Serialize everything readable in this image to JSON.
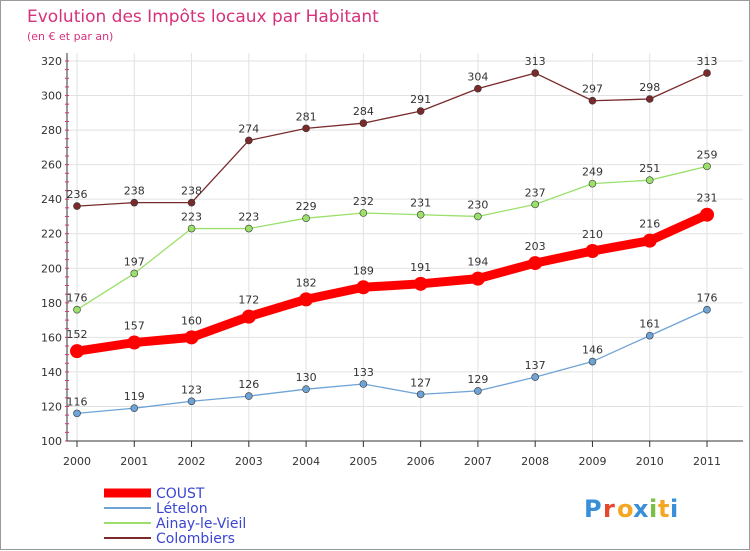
{
  "chart_data": {
    "type": "line",
    "title": "Evolution des Impôts locaux par Habitant",
    "subtitle": "(en € et par an)",
    "x": [
      "2000",
      "2001",
      "2002",
      "2003",
      "2004",
      "2005",
      "2006",
      "2007",
      "2008",
      "2009",
      "2010",
      "2011"
    ],
    "ylim": [
      100,
      320
    ],
    "yticks": [
      100,
      120,
      140,
      160,
      180,
      200,
      220,
      240,
      260,
      280,
      300,
      320
    ],
    "grid": true,
    "legend_position": "bottom-left",
    "series": [
      {
        "name": "COUST",
        "color": "#ff0000",
        "values": [
          152,
          157,
          160,
          172,
          182,
          189,
          191,
          194,
          203,
          210,
          216,
          231
        ]
      },
      {
        "name": "Lételon",
        "color": "#6fa3d6",
        "values": [
          116,
          119,
          123,
          126,
          130,
          133,
          127,
          129,
          137,
          146,
          161,
          176
        ]
      },
      {
        "name": "Ainay-le-Vieil",
        "color": "#9be06a",
        "values": [
          176,
          197,
          223,
          223,
          229,
          232,
          231,
          230,
          237,
          249,
          251,
          259
        ]
      },
      {
        "name": "Colombiers",
        "color": "#7a2a2a",
        "values": [
          236,
          238,
          238,
          274,
          281,
          284,
          291,
          304,
          313,
          297,
          298,
          313
        ]
      }
    ]
  },
  "logo": {
    "text": "Proxiti",
    "colors": [
      "#3a8fd9",
      "#e8462c",
      "#f5a623",
      "#3a8fd9",
      "#7ac143",
      "#f5a623",
      "#3a8fd9"
    ]
  }
}
